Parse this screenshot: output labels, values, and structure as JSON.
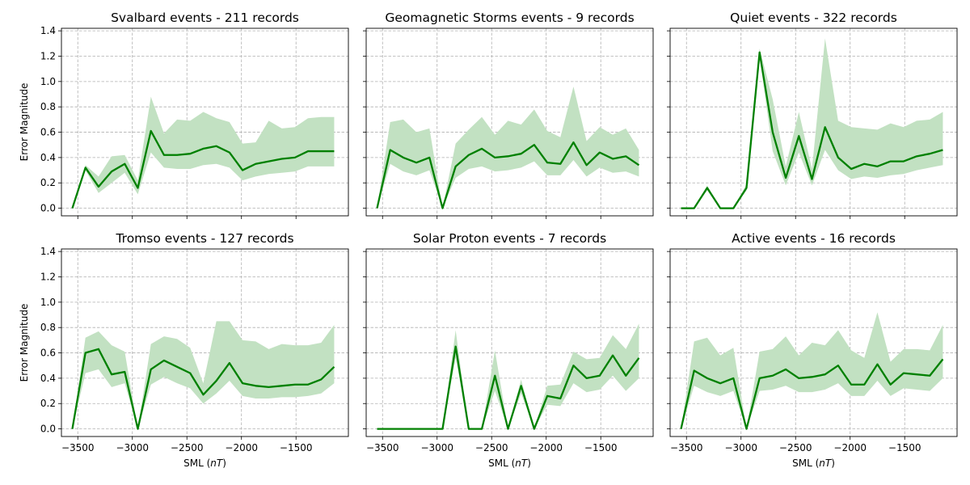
{
  "chart_data": {
    "type": "line",
    "xlabel": "SML (nT)",
    "ylabel": "Error Magnitude",
    "xlim": [
      -3650,
      -1020
    ],
    "ylim": [
      -0.06,
      1.42
    ],
    "xticks": [
      -3500,
      -3000,
      -2500,
      -2000,
      -1500
    ],
    "yticks": [
      0.0,
      0.2,
      0.4,
      0.6,
      0.8,
      1.0,
      1.2,
      1.4
    ],
    "grid": true,
    "line_color": "#008000",
    "band_color": "#c2e1c2",
    "x": [
      -3550,
      -3430,
      -3310,
      -3190,
      -3070,
      -2950,
      -2830,
      -2710,
      -2590,
      -2470,
      -2350,
      -2230,
      -2110,
      -1990,
      -1870,
      -1750,
      -1630,
      -1510,
      -1390,
      -1270,
      -1150
    ],
    "panels": [
      {
        "title": "Svalbard events - 211 records",
        "mean": [
          0.0,
          0.32,
          0.17,
          0.29,
          0.35,
          0.16,
          0.61,
          0.42,
          0.42,
          0.43,
          0.47,
          0.49,
          0.44,
          0.3,
          0.35,
          0.37,
          0.39,
          0.4,
          0.45,
          0.45,
          0.45
        ],
        "lower": [
          0.0,
          0.3,
          0.12,
          0.2,
          0.28,
          0.11,
          0.44,
          0.32,
          0.31,
          0.31,
          0.34,
          0.35,
          0.32,
          0.22,
          0.25,
          0.27,
          0.28,
          0.29,
          0.33,
          0.33,
          0.33
        ],
        "upper": [
          0.0,
          0.34,
          0.25,
          0.41,
          0.42,
          0.22,
          0.88,
          0.59,
          0.7,
          0.69,
          0.76,
          0.71,
          0.68,
          0.51,
          0.52,
          0.69,
          0.63,
          0.64,
          0.71,
          0.72,
          0.72
        ]
      },
      {
        "title": "Geomagnetic Storms events - 9 records",
        "mean": [
          0.0,
          0.46,
          0.4,
          0.36,
          0.4,
          0.0,
          0.33,
          0.42,
          0.47,
          0.4,
          0.41,
          0.43,
          0.5,
          0.36,
          0.35,
          0.52,
          0.34,
          0.44,
          0.39,
          0.41,
          0.34
        ],
        "lower": [
          0.0,
          0.35,
          0.29,
          0.26,
          0.3,
          0.0,
          0.24,
          0.31,
          0.33,
          0.29,
          0.3,
          0.32,
          0.37,
          0.26,
          0.26,
          0.38,
          0.25,
          0.32,
          0.28,
          0.29,
          0.25
        ],
        "upper": [
          0.0,
          0.68,
          0.7,
          0.6,
          0.63,
          0.0,
          0.51,
          0.62,
          0.72,
          0.58,
          0.69,
          0.66,
          0.78,
          0.61,
          0.56,
          0.96,
          0.53,
          0.64,
          0.58,
          0.63,
          0.46
        ]
      },
      {
        "title": "Quiet events - 322 records",
        "mean": [
          0.0,
          0.0,
          0.16,
          0.0,
          0.0,
          0.16,
          1.23,
          0.6,
          0.24,
          0.57,
          0.23,
          0.64,
          0.4,
          0.31,
          0.35,
          0.33,
          0.37,
          0.37,
          0.41,
          0.43,
          0.46
        ],
        "lower": [
          0.0,
          0.0,
          0.14,
          0.0,
          0.0,
          0.14,
          1.19,
          0.45,
          0.18,
          0.44,
          0.18,
          0.46,
          0.3,
          0.23,
          0.25,
          0.24,
          0.26,
          0.27,
          0.3,
          0.32,
          0.34
        ],
        "upper": [
          0.0,
          0.0,
          0.18,
          0.0,
          0.0,
          0.19,
          1.26,
          0.86,
          0.33,
          0.76,
          0.31,
          1.34,
          0.69,
          0.64,
          0.63,
          0.62,
          0.67,
          0.64,
          0.69,
          0.7,
          0.76
        ]
      },
      {
        "title": "Tromso events - 127 records",
        "mean": [
          0.0,
          0.6,
          0.63,
          0.43,
          0.45,
          0.0,
          0.47,
          0.54,
          0.49,
          0.44,
          0.27,
          0.38,
          0.52,
          0.36,
          0.34,
          0.33,
          0.34,
          0.35,
          0.35,
          0.39,
          0.49
        ],
        "lower": [
          0.0,
          0.44,
          0.47,
          0.33,
          0.36,
          0.0,
          0.35,
          0.41,
          0.36,
          0.32,
          0.2,
          0.28,
          0.38,
          0.26,
          0.24,
          0.24,
          0.25,
          0.25,
          0.26,
          0.28,
          0.36
        ],
        "upper": [
          0.0,
          0.72,
          0.77,
          0.66,
          0.61,
          0.0,
          0.67,
          0.73,
          0.71,
          0.64,
          0.36,
          0.85,
          0.85,
          0.7,
          0.69,
          0.63,
          0.67,
          0.66,
          0.66,
          0.68,
          0.82
        ]
      },
      {
        "title": "Solar Proton events - 7 records",
        "mean": [
          0.0,
          0.0,
          0.0,
          0.0,
          0.0,
          0.0,
          0.65,
          0.0,
          0.0,
          0.42,
          0.0,
          0.34,
          0.0,
          0.26,
          0.24,
          0.5,
          0.4,
          0.42,
          0.58,
          0.42,
          0.56
        ],
        "lower": [
          0.0,
          0.0,
          0.0,
          0.0,
          0.0,
          0.0,
          0.56,
          0.0,
          0.0,
          0.3,
          0.0,
          0.28,
          0.0,
          0.19,
          0.18,
          0.36,
          0.29,
          0.31,
          0.42,
          0.3,
          0.4
        ],
        "upper": [
          0.0,
          0.0,
          0.0,
          0.0,
          0.0,
          0.0,
          0.78,
          0.0,
          0.0,
          0.62,
          0.0,
          0.39,
          0.0,
          0.34,
          0.35,
          0.61,
          0.55,
          0.56,
          0.74,
          0.63,
          0.83
        ]
      },
      {
        "title": "Active events - 16 records",
        "mean": [
          0.0,
          0.46,
          0.4,
          0.36,
          0.4,
          0.0,
          0.4,
          0.42,
          0.47,
          0.4,
          0.41,
          0.43,
          0.5,
          0.35,
          0.35,
          0.51,
          0.35,
          0.44,
          0.43,
          0.42,
          0.55
        ],
        "lower": [
          0.0,
          0.34,
          0.29,
          0.26,
          0.3,
          0.0,
          0.3,
          0.31,
          0.34,
          0.29,
          0.29,
          0.31,
          0.36,
          0.26,
          0.26,
          0.38,
          0.26,
          0.32,
          0.31,
          0.3,
          0.4
        ],
        "upper": [
          0.0,
          0.69,
          0.72,
          0.58,
          0.64,
          0.0,
          0.61,
          0.63,
          0.73,
          0.58,
          0.68,
          0.66,
          0.78,
          0.62,
          0.56,
          0.92,
          0.53,
          0.63,
          0.63,
          0.62,
          0.82
        ]
      }
    ]
  }
}
